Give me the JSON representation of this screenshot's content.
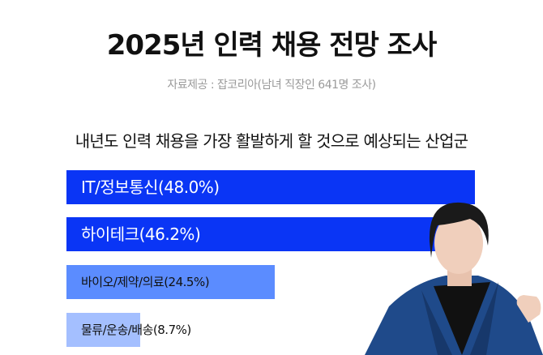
{
  "title": "2025년 인력 채용 전망 조사",
  "source": "자료제공 : 잡코리아(남녀 직장인 641명 조사)",
  "chart_data": {
    "type": "bar",
    "orientation": "horizontal",
    "title": "내년도 인력 채용을 가장 활발하게 할 것으로 예상되는 산업군",
    "categories": [
      "IT/정보통신",
      "하이테크",
      "바이오/제약/의료",
      "물류/운송/배송"
    ],
    "values": [
      48.0,
      46.2,
      24.5,
      8.7
    ],
    "unit": "%",
    "labels": [
      "IT/정보통신(48.0%)",
      "하이테크(46.2%)",
      "바이오/제약/의료(24.5%)",
      "물류/운송/배송(8.7%)"
    ],
    "colors": [
      "#0a35f5",
      "#0a35f5",
      "#5b8cff",
      "#a4bfff"
    ],
    "label_colors": [
      "#ffffff",
      "#ffffff",
      "#111111",
      "#111111"
    ],
    "grid": false,
    "legend": "none"
  }
}
